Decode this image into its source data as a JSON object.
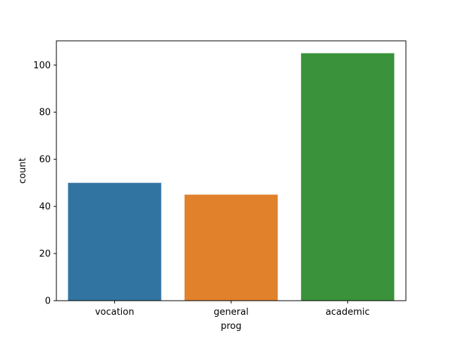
{
  "chart_data": {
    "type": "bar",
    "categories": [
      "vocation",
      "general",
      "academic"
    ],
    "values": [
      50,
      45,
      105
    ],
    "colors": [
      "#3274a1",
      "#e1812c",
      "#3a923a"
    ],
    "title": "",
    "xlabel": "prog",
    "ylabel": "count",
    "ylim": [
      0,
      110.25
    ],
    "yticks": [
      0,
      20,
      40,
      60,
      80,
      100
    ],
    "grid": false,
    "legend": "none"
  }
}
